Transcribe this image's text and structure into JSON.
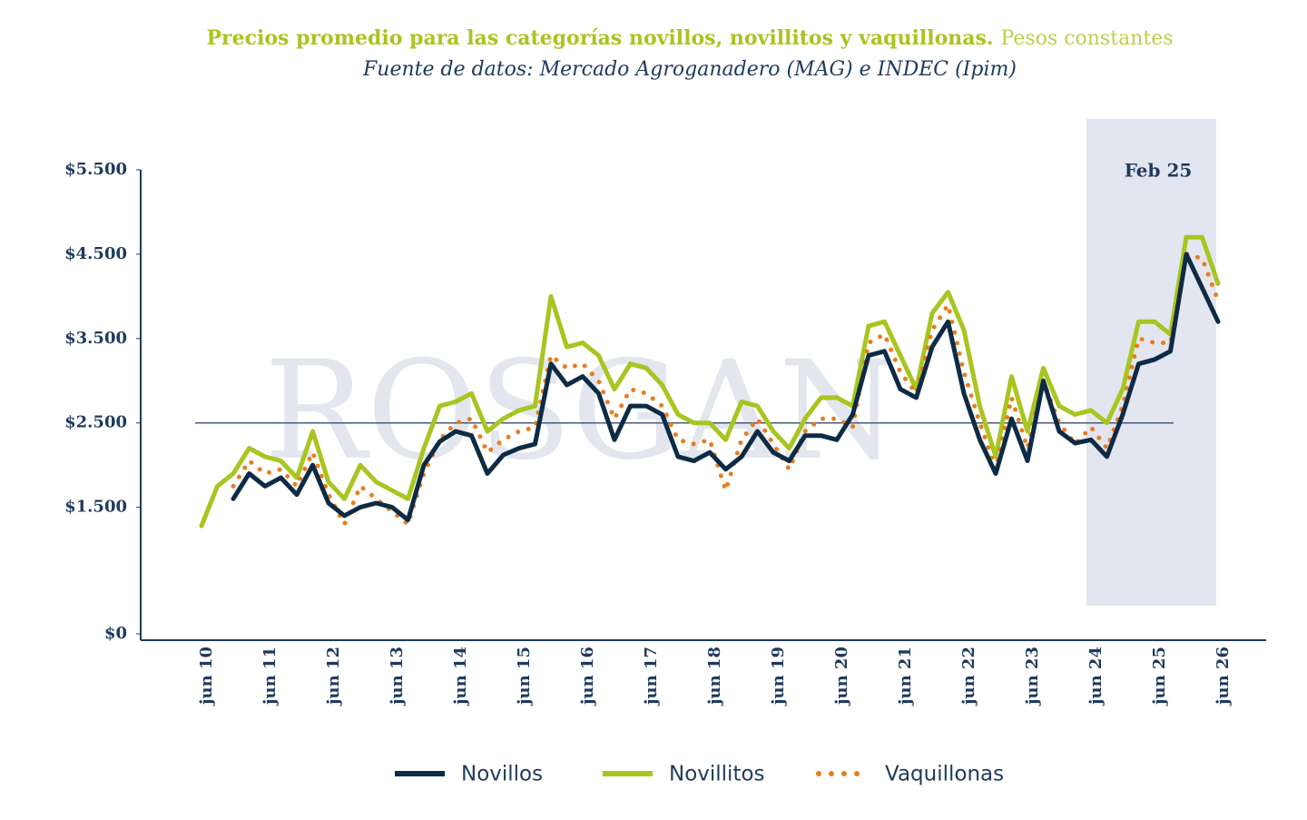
{
  "chart_data": {
    "type": "line",
    "title": "Precios promedio para las categorías novillos, novillitos y vaquillonas.",
    "title_note": "Pesos constantes",
    "subtitle": "Fuente de datos: Mercado Agroganadero (MAG) e INDEC (Ipim)",
    "annotation": "Feb 25",
    "watermark": "ROSGAN",
    "reference_line": 2500,
    "categories": [
      "jun 10",
      null,
      null,
      null,
      "jun 11",
      null,
      null,
      null,
      "jun 12",
      null,
      null,
      null,
      "jun 13",
      null,
      null,
      null,
      "jun 14",
      null,
      null,
      null,
      "jun 15",
      null,
      null,
      null,
      "jun 16",
      null,
      null,
      null,
      "jun 17",
      null,
      null,
      null,
      "jun 18",
      null,
      null,
      null,
      "jun 19",
      null,
      null,
      null,
      "jun 20",
      null,
      null,
      null,
      "jun 21",
      null,
      null,
      null,
      "jun 22",
      null,
      null,
      null,
      "jun 23",
      null,
      null,
      null,
      "jun 24",
      null,
      null,
      null,
      "jun 25",
      null,
      null,
      null,
      "jun 26"
    ],
    "series": [
      {
        "name": "Novillos",
        "color": "#0d2b45",
        "style": "solid",
        "values": [
          null,
          null,
          1600,
          1900,
          1750,
          1850,
          1650,
          2000,
          1550,
          1400,
          1500,
          1550,
          1500,
          1350,
          2000,
          2280,
          2400,
          2350,
          1900,
          2120,
          2200,
          2250,
          3200,
          2950,
          3050,
          2850,
          2300,
          2700,
          2700,
          2600,
          2100,
          2050,
          2150,
          1950,
          2100,
          2400,
          2150,
          2050,
          2350,
          2350,
          2300,
          2600,
          3300,
          3350,
          2900,
          2800,
          3400,
          3700,
          2850,
          2300,
          1900,
          2550,
          2050,
          3000,
          2400,
          2260,
          2300,
          2100,
          2600,
          3200,
          3250,
          3350,
          4500,
          4100,
          3700
        ]
      },
      {
        "name": "Novillitos",
        "color": "#a8c520",
        "style": "solid",
        "values": [
          1280,
          1750,
          1900,
          2200,
          2100,
          2050,
          1850,
          2400,
          1800,
          1600,
          2000,
          1800,
          1700,
          1600,
          2200,
          2700,
          2750,
          2850,
          2400,
          2550,
          2650,
          2700,
          4000,
          3400,
          3450,
          3300,
          2900,
          3200,
          3150,
          2950,
          2600,
          2500,
          2500,
          2300,
          2750,
          2700,
          2400,
          2200,
          2550,
          2800,
          2800,
          2700,
          3650,
          3700,
          3300,
          2900,
          3800,
          4050,
          3600,
          2700,
          2100,
          3050,
          2400,
          3150,
          2700,
          2600,
          2650,
          2500,
          2900,
          3700,
          3700,
          3550,
          4700,
          4700,
          4150
        ]
      },
      {
        "name": "Vaquillonas",
        "color": "#e87d1e",
        "style": "dotted",
        "values": [
          null,
          null,
          1750,
          2050,
          1900,
          1950,
          1750,
          2150,
          1650,
          1300,
          1750,
          1600,
          1450,
          1300,
          1900,
          2300,
          2500,
          2550,
          2150,
          2300,
          2400,
          2450,
          3300,
          3150,
          3200,
          3000,
          2550,
          2900,
          2850,
          2700,
          2300,
          2250,
          2300,
          1700,
          2300,
          2550,
          2250,
          1950,
          2400,
          2550,
          2550,
          2450,
          3450,
          3550,
          3100,
          2850,
          3600,
          3900,
          3100,
          2500,
          1950,
          2800,
          2200,
          3000,
          2500,
          2250,
          2450,
          2200,
          2700,
          3500,
          3450,
          3450,
          4500,
          4450,
          3950
        ]
      }
    ],
    "ylim": [
      0,
      5500
    ],
    "yticks": [
      {
        "value": 0,
        "label": "$0"
      },
      {
        "value": 1500,
        "label": "$1.500"
      },
      {
        "value": 2500,
        "label": "$2.500"
      },
      {
        "value": 3500,
        "label": "$3.500"
      },
      {
        "value": 4500,
        "label": "$4.500"
      },
      {
        "value": 5500,
        "label": "$5.500"
      }
    ],
    "legend": "bottom"
  }
}
